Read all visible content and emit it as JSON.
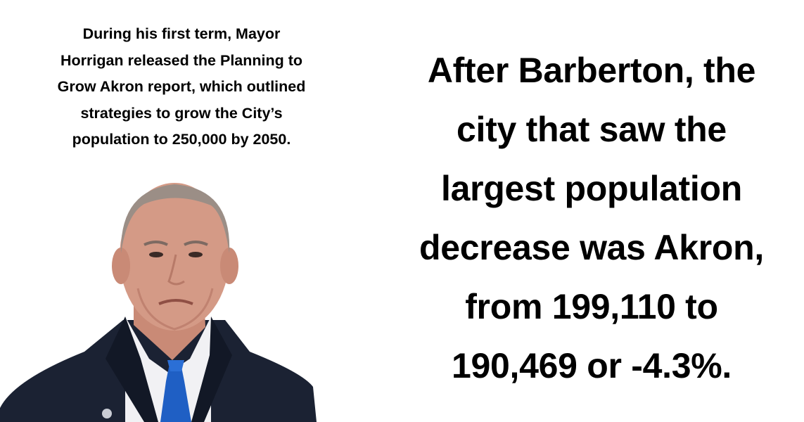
{
  "caption": {
    "text": "During his first term, Mayor\nHorrigan released the Planning to\nGrow Akron report, which outlined\nstrategies to grow the City’s\npopulation to 250,000 by 2050."
  },
  "headline": {
    "text": "After Barberton, the\ncity that saw the\nlargest population\ndecrease was Akron,\nfrom 199,110 to\n190,469 or -4.3%."
  },
  "photo": {
    "subject": "mayor-portrait",
    "colors": {
      "suit": "#1b2233",
      "shirt": "#f1f1f4",
      "tie": "#1f5fc4",
      "skin": "#d49a86",
      "hair": "#9b8e86"
    }
  }
}
